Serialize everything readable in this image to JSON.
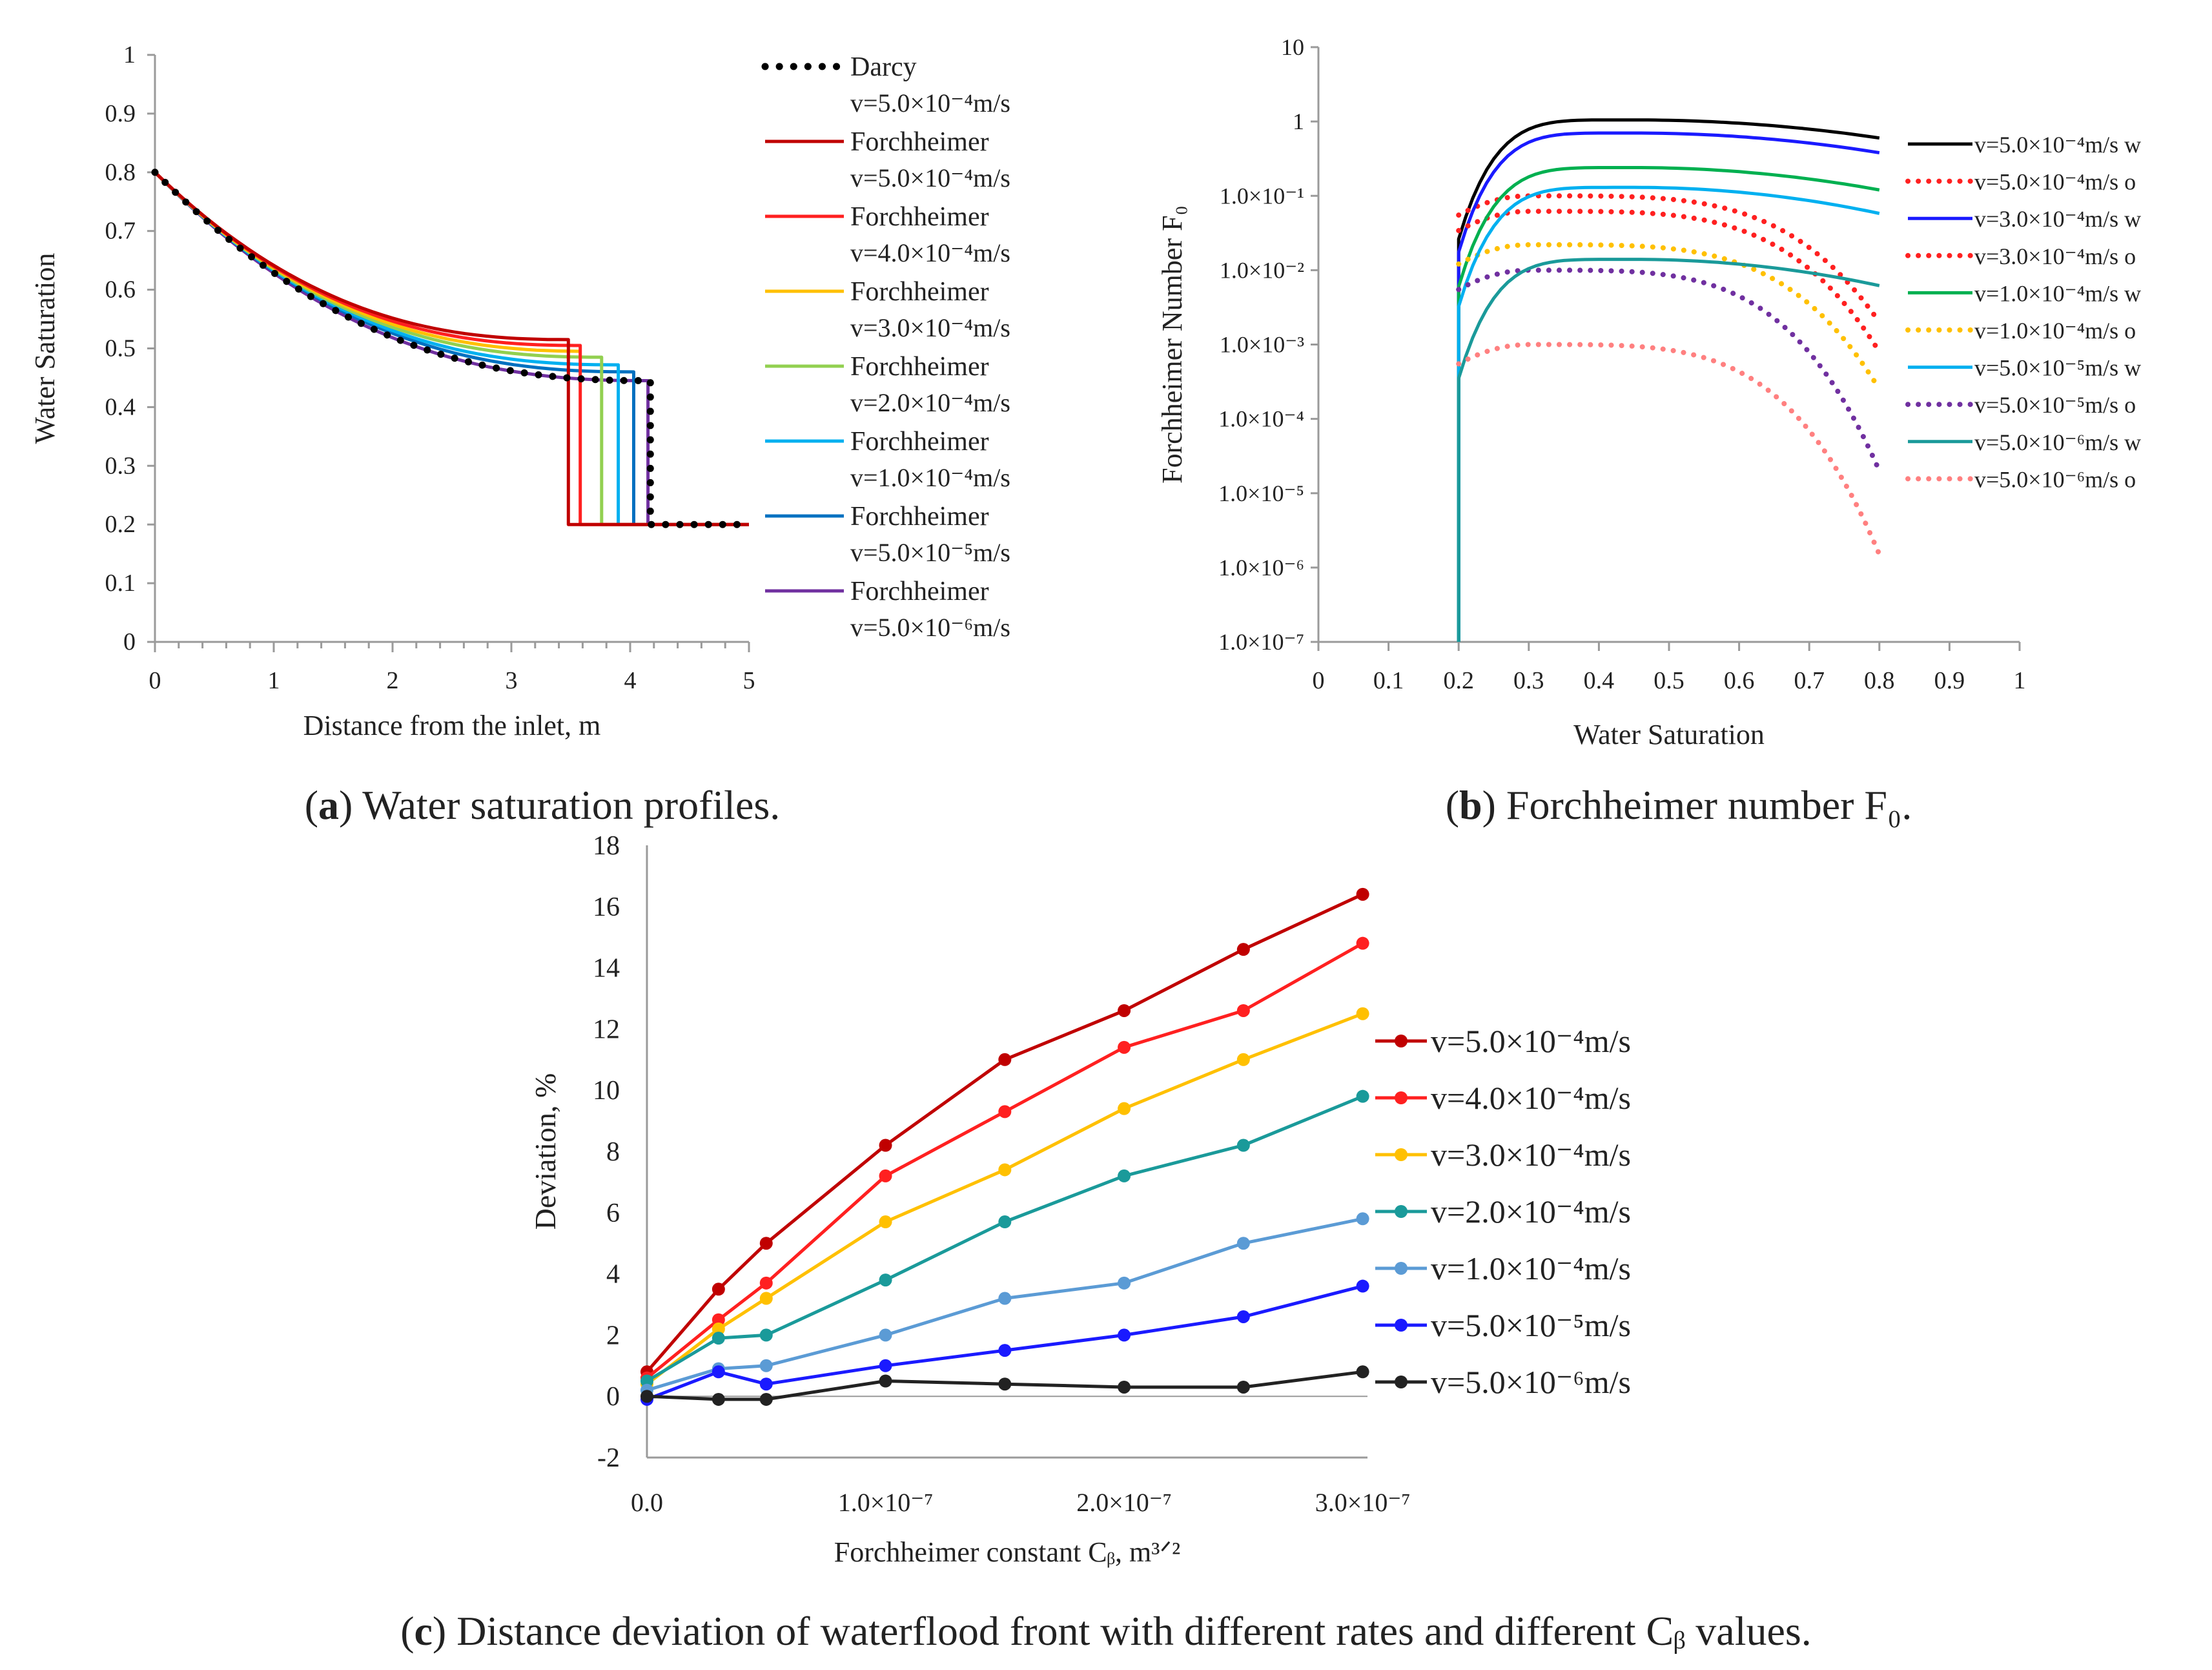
{
  "colors": {
    "axis": "#9a9a9a",
    "text": "#222222"
  },
  "chart_data": [
    {
      "type": "line",
      "panel": "a",
      "caption_label": "a",
      "caption_text": "Water saturation profiles.",
      "xlabel": "Distance from the inlet, m",
      "ylabel": "Water Saturation",
      "xlim": [
        0,
        5
      ],
      "ylim": [
        0,
        1
      ],
      "x_ticks": [
        "0",
        "1",
        "2",
        "3",
        "4",
        "5"
      ],
      "y_ticks": [
        "0",
        "0.1",
        "0.2",
        "0.3",
        "0.4",
        "0.5",
        "0.6",
        "0.7",
        "0.8",
        "0.9",
        "1"
      ],
      "series": [
        {
          "name": "Darcy",
          "rate": "v=5.0×10⁻⁴m/s",
          "color": "#000000",
          "style": "dotted",
          "profile_top": 0.445,
          "front": 4.17
        },
        {
          "name": "Forchheimer",
          "rate": "v=5.0×10⁻⁴m/s",
          "color": "#c00000",
          "style": "solid",
          "profile_top": 0.515,
          "front": 3.48
        },
        {
          "name": "Forchheimer",
          "rate": "v=4.0×10⁻⁴m/s",
          "color": "#ff2020",
          "style": "solid",
          "profile_top": 0.505,
          "front": 3.58
        },
        {
          "name": "Forchheimer",
          "rate": "v=3.0×10⁻⁴m/s",
          "color": "#ffc000",
          "style": "solid",
          "profile_top": 0.495,
          "front": 3.67
        },
        {
          "name": "Forchheimer",
          "rate": "v=2.0×10⁻⁴m/s",
          "color": "#92d050",
          "style": "solid",
          "profile_top": 0.485,
          "front": 3.76
        },
        {
          "name": "Forchheimer",
          "rate": "v=1.0×10⁻⁴m/s",
          "color": "#00b0f0",
          "style": "solid",
          "profile_top": 0.472,
          "front": 3.9
        },
        {
          "name": "Forchheimer",
          "rate": "v=5.0×10⁻⁵m/s",
          "color": "#0070c0",
          "style": "solid",
          "profile_top": 0.46,
          "front": 4.03
        },
        {
          "name": "Forchheimer",
          "rate": "v=5.0×10⁻⁶m/s",
          "color": "#7030a0",
          "style": "solid",
          "profile_top": 0.445,
          "front": 4.15
        }
      ]
    },
    {
      "type": "line",
      "panel": "b",
      "caption_label": "b",
      "caption_text": "Forchheimer number F₀.",
      "xlabel": "Water Saturation",
      "ylabel": "Forchheimer Number F₀",
      "xlim": [
        0,
        1
      ],
      "ylim_log10": [
        -7,
        1
      ],
      "x_ticks": [
        "0",
        "0.1",
        "0.2",
        "0.3",
        "0.4",
        "0.5",
        "0.6",
        "0.7",
        "0.8",
        "0.9",
        "1"
      ],
      "y_ticks": [
        "1.0×10⁻⁷",
        "1.0×10⁻⁶",
        "1.0×10⁻⁵",
        "1.0×10⁻⁴",
        "1.0×10⁻³",
        "1.0×10⁻²",
        "1.0×10⁻¹",
        "1",
        "10"
      ],
      "series": [
        {
          "name": "v=5.0×10⁻⁴m/s w",
          "color": "#000000",
          "style": "solid",
          "phase": "w",
          "peak": 1.05,
          "end": 0.6
        },
        {
          "name": "v=5.0×10⁻⁴m/s o",
          "color": "#ff2020",
          "style": "dotted",
          "phase": "o",
          "peak": 0.1,
          "end": 0.002
        },
        {
          "name": "v=3.0×10⁻⁴m/s w",
          "color": "#1a1aff",
          "style": "solid",
          "phase": "w",
          "peak": 0.7,
          "end": 0.38
        },
        {
          "name": "v=3.0×10⁻⁴m/s o",
          "color": "#ff2020",
          "style": "dotted",
          "phase": "o",
          "peak": 0.062,
          "end": 0.0008
        },
        {
          "name": "v=1.0×10⁻⁴m/s w",
          "color": "#00b050",
          "style": "solid",
          "phase": "w",
          "peak": 0.24,
          "end": 0.12
        },
        {
          "name": "v=1.0×10⁻⁴m/s o",
          "color": "#ffc000",
          "style": "dotted",
          "phase": "o",
          "peak": 0.022,
          "end": 0.00025
        },
        {
          "name": "v=5.0×10⁻⁵m/s w",
          "color": "#00b0f0",
          "style": "solid",
          "phase": "w",
          "peak": 0.13,
          "end": 0.058
        },
        {
          "name": "v=5.0×10⁻⁵m/s o",
          "color": "#7030a0",
          "style": "dotted",
          "phase": "o",
          "peak": 0.01,
          "end": 2e-05
        },
        {
          "name": "v=5.0×10⁻⁶m/s w",
          "color": "#1a9a9a",
          "style": "solid",
          "phase": "w",
          "peak": 0.014,
          "end": 0.0062
        },
        {
          "name": "v=5.0×10⁻⁶m/s o",
          "color": "#ff8080",
          "style": "dotted",
          "phase": "o",
          "peak": 0.001,
          "end": 1.5e-06
        }
      ]
    },
    {
      "type": "line",
      "panel": "c",
      "caption_label": "c",
      "caption_text": "Distance deviation of waterflood front with different rates and different Cᵦ values.",
      "xlabel": "Forchheimer constant Cᵦ, m³ᐟ²",
      "ylabel": "Deviation, %",
      "ylim": [
        -2,
        18
      ],
      "y_ticks": [
        "-2",
        "0",
        "2",
        "4",
        "6",
        "8",
        "10",
        "12",
        "14",
        "16",
        "18"
      ],
      "x_ticks": [
        "0.0",
        "1.0×10⁻⁷",
        "2.0×10⁻⁷",
        "3.0×10⁻⁷"
      ],
      "x": [
        0.0,
        3e-08,
        5e-08,
        1e-07,
        1.5e-07,
        2e-07,
        2.5e-07,
        3e-07
      ],
      "series": [
        {
          "name": "v=5.0×10⁻⁴m/s",
          "color": "#c00000",
          "values": [
            0.8,
            3.5,
            5.0,
            8.2,
            11.0,
            12.6,
            14.6,
            16.4
          ]
        },
        {
          "name": "v=4.0×10⁻⁴m/s",
          "color": "#ff2020",
          "values": [
            0.6,
            2.5,
            3.7,
            7.2,
            9.3,
            11.4,
            12.6,
            14.8
          ]
        },
        {
          "name": "v=3.0×10⁻⁴m/s",
          "color": "#ffc000",
          "values": [
            0.4,
            2.2,
            3.2,
            5.7,
            7.4,
            9.4,
            11.0,
            12.5
          ]
        },
        {
          "name": "v=2.0×10⁻⁴m/s",
          "color": "#1a9a9a",
          "values": [
            0.5,
            1.9,
            2.0,
            3.8,
            5.7,
            7.2,
            8.2,
            9.8
          ]
        },
        {
          "name": "v=1.0×10⁻⁴m/s",
          "color": "#5b9bd5",
          "values": [
            0.2,
            0.9,
            1.0,
            2.0,
            3.2,
            3.7,
            5.0,
            5.8
          ]
        },
        {
          "name": "v=5.0×10⁻⁵m/s",
          "color": "#1a1aff",
          "values": [
            -0.1,
            0.8,
            0.4,
            1.0,
            1.5,
            2.0,
            2.6,
            3.6
          ]
        },
        {
          "name": "v=5.0×10⁻⁶m/s",
          "color": "#222222",
          "values": [
            0.0,
            -0.1,
            -0.1,
            0.5,
            0.4,
            0.3,
            0.3,
            0.8
          ]
        }
      ]
    }
  ]
}
